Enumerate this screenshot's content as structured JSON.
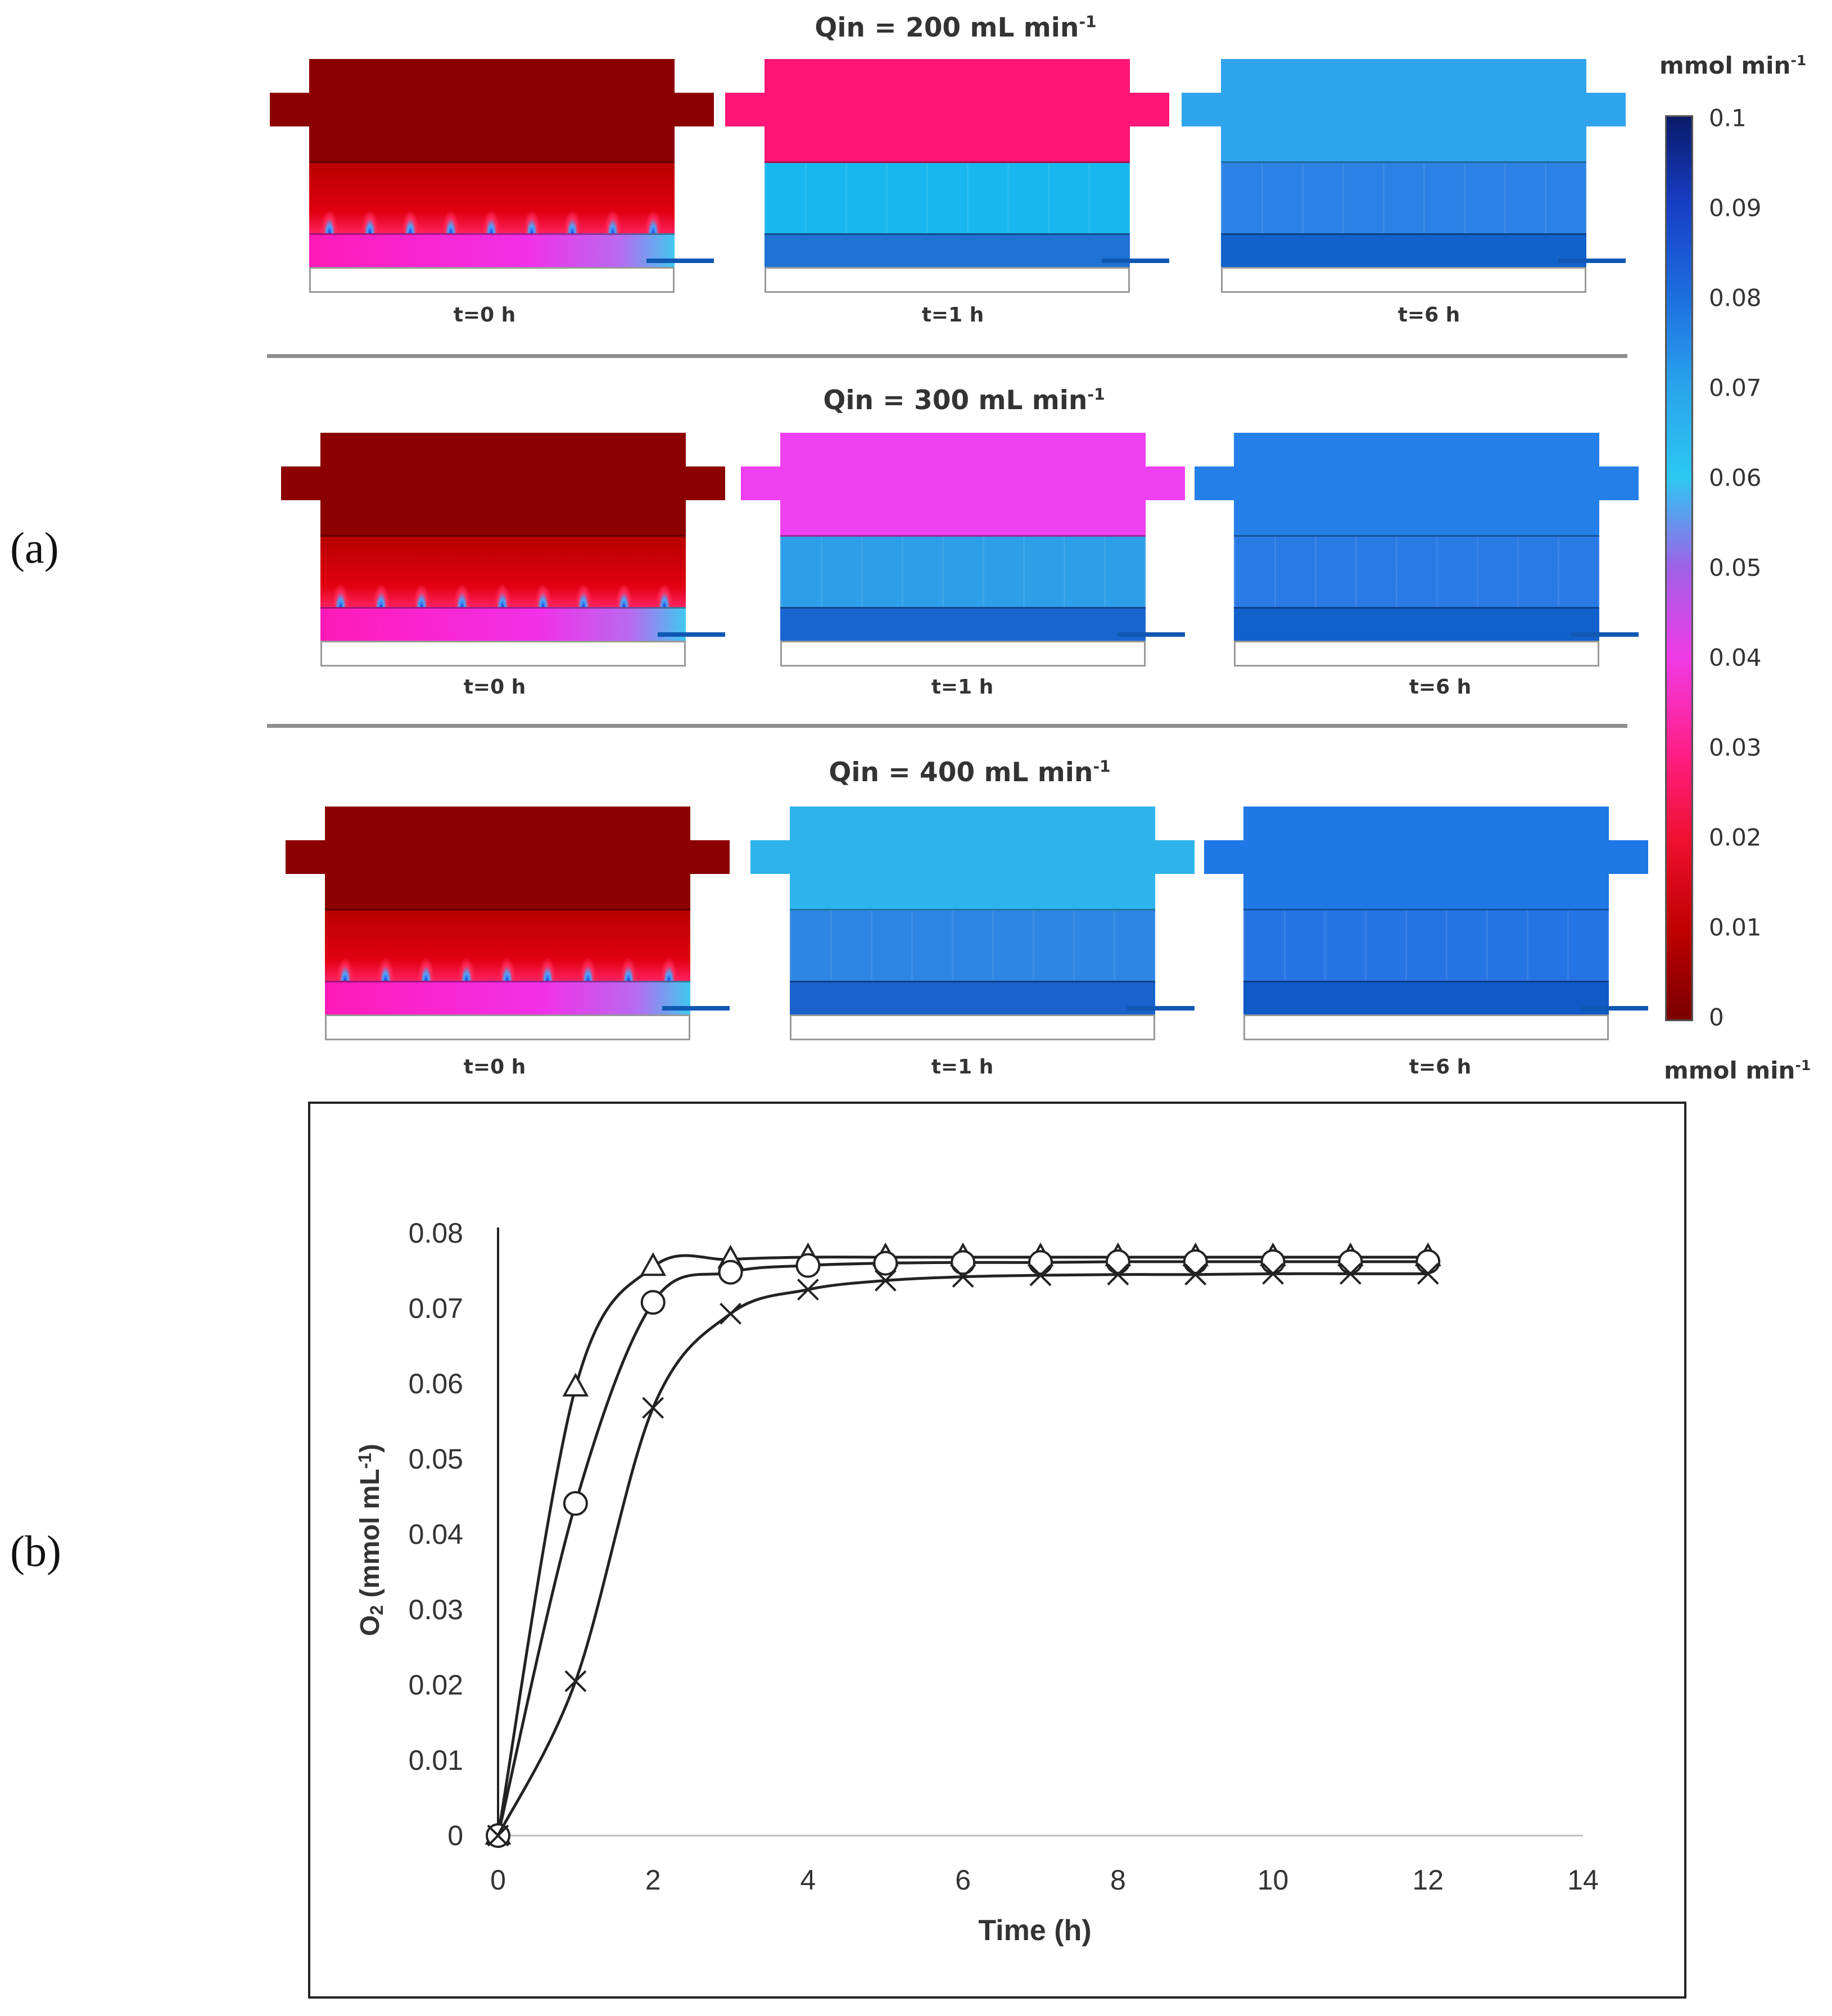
{
  "panel_labels": {
    "a": "(a)",
    "b": "(b)"
  },
  "simulation": {
    "rows": [
      {
        "title_main": "Qin = 200 mL min",
        "title_sup": "-1",
        "frames": [
          {
            "time": "t=0 h",
            "state": "initial"
          },
          {
            "time": "t=1 h",
            "state": "transient"
          },
          {
            "time": "t=6 h",
            "state": "steady"
          }
        ],
        "colors": {
          "t1_top": "#ff1577",
          "t1_mid": "#18b8ee",
          "t1_bed": "#1f72d4",
          "t6_top": "#2fa4ec",
          "t6_mid": "#2b82e4",
          "t6_bed": "#1262cc"
        }
      },
      {
        "title_main": "Qin = 300 mL min",
        "title_sup": "-1",
        "frames": [
          {
            "time": "t=0 h",
            "state": "initial"
          },
          {
            "time": "t=1 h",
            "state": "transient"
          },
          {
            "time": "t=6 h",
            "state": "steady"
          }
        ],
        "colors": {
          "t1_top": "#ee3ff0",
          "t1_mid": "#2e9ee8",
          "t1_bed": "#1a66d0",
          "t6_top": "#2480e8",
          "t6_mid": "#2a7ae6",
          "t6_bed": "#1260cc"
        }
      },
      {
        "title_main": "Qin = 400 mL min",
        "title_sup": "-1",
        "frames": [
          {
            "time": "t=0 h",
            "state": "initial"
          },
          {
            "time": "t=1 h",
            "state": "transient"
          },
          {
            "time": "t=6 h",
            "state": "steady"
          }
        ],
        "colors": {
          "t1_top": "#2eb4ec",
          "t1_mid": "#2d86e4",
          "t1_bed": "#1a62cc",
          "t6_top": "#1f78e6",
          "t6_mid": "#2674e4",
          "t6_bed": "#105ac8"
        }
      }
    ],
    "initial_colors": {
      "top": "#8c0000",
      "mid": "#d00000",
      "bed": "#ff19b0"
    },
    "colorbar": {
      "unit_main": "mmol min",
      "unit_sup": "-1",
      "ticks": [
        "0.1",
        "0.09",
        "0.08",
        "0.07",
        "0.06",
        "0.05",
        "0.04",
        "0.03",
        "0.02",
        "0.01",
        "0"
      ],
      "gradient": [
        "#0a1a6a",
        "#1740c8",
        "#1d6fe0",
        "#2aa4ec",
        "#2cc8f0",
        "#a060e8",
        "#f03ae6",
        "#ff1f8a",
        "#f01030",
        "#c00000",
        "#7a0000"
      ]
    }
  },
  "chart_data": {
    "type": "line",
    "title": "",
    "xlabel": "Time  (h)",
    "ylabel_main": "O",
    "ylabel_sub": "2",
    "ylabel_rest": " (mmol mL",
    "ylabel_sup": "-1",
    "ylabel_end": ")",
    "xlim": [
      0,
      14
    ],
    "ylim": [
      0,
      0.08
    ],
    "xticks": [
      "0",
      "2",
      "4",
      "6",
      "8",
      "10",
      "12",
      "14"
    ],
    "yticks": [
      "0",
      "0.01",
      "0.02",
      "0.03",
      "0.04",
      "0.05",
      "0.06",
      "0.07",
      "0.08"
    ],
    "grid": false,
    "series": [
      {
        "name": "triangle",
        "marker": "triangle",
        "x": [
          0,
          1,
          2,
          3,
          4,
          5,
          6,
          7,
          8,
          9,
          10,
          11,
          12
        ],
        "values": [
          0,
          0.0595,
          0.0755,
          0.0765,
          0.0768,
          0.0768,
          0.0768,
          0.0768,
          0.0768,
          0.0768,
          0.0768,
          0.0768,
          0.0768
        ]
      },
      {
        "name": "circle",
        "marker": "circle",
        "x": [
          0,
          1,
          2,
          3,
          4,
          5,
          6,
          7,
          8,
          9,
          10,
          11,
          12
        ],
        "values": [
          0,
          0.0441,
          0.0708,
          0.0748,
          0.0757,
          0.076,
          0.0761,
          0.0761,
          0.0762,
          0.0762,
          0.0762,
          0.0762,
          0.0762
        ]
      },
      {
        "name": "cross",
        "marker": "cross",
        "x": [
          0,
          1,
          2,
          3,
          4,
          5,
          6,
          7,
          8,
          9,
          10,
          11,
          12
        ],
        "values": [
          0,
          0.0205,
          0.0568,
          0.0693,
          0.0725,
          0.0737,
          0.0742,
          0.0744,
          0.0745,
          0.0745,
          0.0746,
          0.0746,
          0.0746
        ]
      }
    ]
  }
}
